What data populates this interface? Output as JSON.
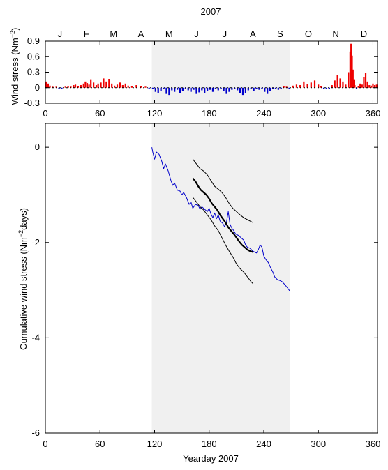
{
  "chart_data": [
    {
      "type": "bar",
      "title": "2007",
      "ylabel_main": "Wind stress (Nm",
      "ylabel_sup": "−2",
      "ylabel_end": ")",
      "xlim": [
        0,
        365
      ],
      "ylim": [
        -0.3,
        0.9
      ],
      "yticks": [
        "0.9",
        "0.6",
        "0.3",
        "0",
        "-0.3"
      ],
      "ytick_values": [
        0.9,
        0.6,
        0.3,
        0,
        -0.3
      ],
      "xticks": [
        "0",
        "60",
        "120",
        "180",
        "240",
        "300",
        "360"
      ],
      "xtick_values": [
        0,
        60,
        120,
        180,
        240,
        300,
        360
      ],
      "month_labels": [
        "J",
        "F",
        "M",
        "A",
        "M",
        "J",
        "J",
        "A",
        "S",
        "O",
        "N",
        "D"
      ],
      "month_centers": [
        16,
        45,
        75,
        105,
        136,
        166,
        197,
        228,
        258,
        289,
        319,
        350
      ],
      "shaded_span": [
        117,
        269
      ],
      "colors": {
        "positive": "#ee0000",
        "negative": "#0000cc",
        "shade": "#f0f0f0"
      },
      "series": [
        {
          "x": [
            1,
            3,
            5,
            8,
            12,
            15,
            18,
            22,
            25,
            28,
            31,
            33,
            36,
            39,
            42,
            44,
            46,
            48,
            50,
            53,
            56,
            58,
            61,
            64,
            67,
            70,
            73,
            76,
            79,
            82,
            85,
            88,
            91,
            95,
            100,
            105,
            110,
            114,
            118,
            121,
            124,
            127,
            130,
            133,
            136,
            139,
            142,
            145,
            148,
            151,
            154,
            157,
            160,
            163,
            166,
            169,
            172,
            175,
            178,
            181,
            184,
            187,
            190,
            193,
            196,
            199,
            202,
            205,
            208,
            211,
            214,
            217,
            220,
            223,
            226,
            229,
            232,
            235,
            238,
            241,
            244,
            247,
            250,
            253,
            256,
            259,
            262,
            265,
            268,
            272,
            276,
            280,
            284,
            288,
            292,
            296,
            300,
            303,
            306,
            309,
            312,
            315,
            318,
            321,
            324,
            327,
            330,
            333,
            335,
            336,
            337,
            338,
            339,
            340,
            342,
            344,
            346,
            348,
            350,
            352,
            354,
            356,
            358,
            360,
            362,
            364
          ],
          "values": [
            0.12,
            0.08,
            0.04,
            0.02,
            0.02,
            -0.02,
            -0.03,
            0.02,
            0.03,
            0.02,
            0.05,
            0.06,
            0.03,
            0.05,
            0.08,
            0.12,
            0.09,
            0.06,
            0.15,
            0.1,
            0.05,
            0.08,
            0.1,
            0.18,
            0.12,
            0.16,
            0.08,
            0.04,
            0.06,
            0.1,
            0.05,
            0.08,
            0.04,
            0.03,
            0.05,
            0.03,
            0.02,
            -0.02,
            -0.03,
            -0.08,
            -0.1,
            -0.06,
            -0.03,
            -0.12,
            -0.14,
            -0.05,
            -0.08,
            -0.04,
            -0.1,
            -0.06,
            -0.03,
            -0.05,
            -0.08,
            -0.04,
            -0.12,
            -0.09,
            -0.05,
            -0.1,
            -0.06,
            -0.04,
            -0.08,
            -0.03,
            -0.05,
            -0.02,
            -0.06,
            -0.12,
            -0.08,
            -0.04,
            -0.02,
            -0.05,
            -0.1,
            -0.14,
            -0.1,
            -0.05,
            -0.03,
            -0.06,
            -0.03,
            -0.04,
            -0.02,
            -0.08,
            -0.12,
            -0.06,
            -0.03,
            -0.02,
            -0.04,
            -0.02,
            0.03,
            0.02,
            -0.03,
            0.04,
            0.06,
            0.05,
            0.12,
            0.07,
            0.1,
            0.14,
            0.06,
            0.03,
            -0.02,
            -0.03,
            -0.02,
            0.05,
            0.14,
            0.25,
            0.18,
            0.12,
            0.06,
            0.3,
            0.7,
            0.85,
            0.62,
            0.35,
            0.15,
            0.05,
            -0.02,
            0.03,
            0.08,
            0.06,
            0.2,
            0.28,
            0.12,
            0.05,
            0.04,
            0.08,
            0.05,
            0.06
          ]
        }
      ]
    },
    {
      "type": "line",
      "xlabel": "Yearday 2007",
      "ylabel_main": "Cumulative wind stress (Nm",
      "ylabel_sup": "−2",
      "ylabel_end": "days)",
      "xlim": [
        0,
        365
      ],
      "ylim": [
        -6,
        0.5
      ],
      "yticks": [
        "0",
        "-2",
        "-4",
        "-6"
      ],
      "ytick_values": [
        0,
        -2,
        -4,
        -6
      ],
      "xticks": [
        "0",
        "60",
        "120",
        "180",
        "240",
        "300",
        "360"
      ],
      "xtick_values": [
        0,
        60,
        120,
        180,
        240,
        300,
        360
      ],
      "shaded_span": [
        117,
        269
      ],
      "colors": {
        "cumulative": "#0000cc",
        "envelope": "#000000",
        "fit": "#000000",
        "shade": "#f0f0f0"
      },
      "series": [
        {
          "role": "cumulative",
          "x": [
            117,
            118,
            120,
            122,
            125,
            128,
            130,
            132,
            135,
            138,
            140,
            142,
            145,
            148,
            150,
            152,
            155,
            158,
            160,
            162,
            165,
            168,
            170,
            172,
            175,
            178,
            180,
            182,
            184,
            186,
            188,
            190,
            192,
            195,
            197,
            199,
            201,
            203,
            205,
            207,
            209,
            212,
            215,
            218,
            220,
            222,
            225,
            228,
            230,
            232,
            234,
            236,
            238,
            240,
            242,
            245,
            248,
            250,
            252,
            255,
            258,
            260,
            263,
            266,
            269
          ],
          "values": [
            0.0,
            -0.1,
            -0.25,
            -0.1,
            -0.15,
            -0.3,
            -0.45,
            -0.35,
            -0.5,
            -0.7,
            -0.8,
            -0.75,
            -0.9,
            -0.92,
            -1.0,
            -0.95,
            -1.05,
            -1.2,
            -1.15,
            -1.28,
            -1.2,
            -1.22,
            -1.3,
            -1.25,
            -1.3,
            -1.35,
            -1.28,
            -1.4,
            -1.48,
            -1.38,
            -1.5,
            -1.42,
            -1.55,
            -1.6,
            -1.67,
            -1.58,
            -1.35,
            -1.62,
            -1.7,
            -1.75,
            -1.82,
            -1.85,
            -1.9,
            -1.95,
            -2.05,
            -2.1,
            -2.12,
            -2.18,
            -2.2,
            -2.22,
            -2.15,
            -2.05,
            -2.1,
            -2.28,
            -2.35,
            -2.42,
            -2.55,
            -2.62,
            -2.72,
            -2.78,
            -2.8,
            -2.82,
            -2.88,
            -2.95,
            -3.03
          ]
        },
        {
          "role": "fit",
          "x": [
            162,
            165,
            168,
            171,
            174,
            177,
            180,
            183,
            186,
            189,
            192,
            195,
            198,
            201,
            204,
            207,
            210,
            213,
            216,
            219,
            222,
            225,
            228
          ],
          "values": [
            -0.65,
            -0.72,
            -0.82,
            -0.9,
            -0.95,
            -1.0,
            -1.08,
            -1.18,
            -1.25,
            -1.32,
            -1.42,
            -1.5,
            -1.58,
            -1.68,
            -1.75,
            -1.82,
            -1.9,
            -1.98,
            -2.05,
            -2.1,
            -2.15,
            -2.18,
            -2.2
          ]
        },
        {
          "role": "envelope-upper",
          "x": [
            162,
            166,
            170,
            174,
            178,
            182,
            186,
            190,
            194,
            198,
            202,
            206,
            210,
            214,
            218,
            222,
            226,
            228
          ],
          "values": [
            -0.25,
            -0.35,
            -0.45,
            -0.5,
            -0.58,
            -0.7,
            -0.82,
            -0.88,
            -0.95,
            -1.05,
            -1.18,
            -1.28,
            -1.35,
            -1.42,
            -1.48,
            -1.52,
            -1.56,
            -1.58
          ]
        },
        {
          "role": "envelope-lower",
          "x": [
            162,
            166,
            170,
            174,
            178,
            182,
            186,
            190,
            194,
            198,
            202,
            206,
            210,
            214,
            218,
            222,
            226,
            228
          ],
          "values": [
            -1.05,
            -1.15,
            -1.25,
            -1.32,
            -1.42,
            -1.52,
            -1.65,
            -1.75,
            -1.9,
            -2.05,
            -2.18,
            -2.3,
            -2.45,
            -2.55,
            -2.62,
            -2.72,
            -2.82,
            -2.86
          ]
        }
      ]
    }
  ]
}
